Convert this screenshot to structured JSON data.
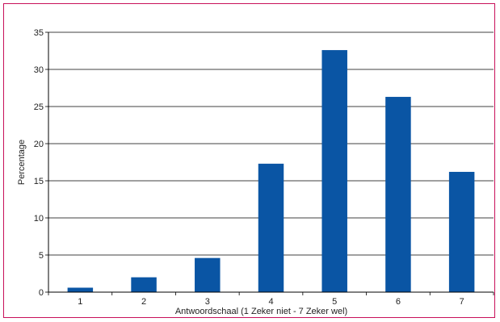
{
  "chart_data": {
    "type": "bar",
    "categories": [
      "1",
      "2",
      "3",
      "4",
      "5",
      "6",
      "7"
    ],
    "values": [
      0.6,
      2.0,
      4.6,
      17.3,
      32.6,
      26.3,
      16.2
    ],
    "xlabel": "Antwoordschaal (1 Zeker niet - 7 Zeker wel)",
    "ylabel": "Percentage",
    "ylim": [
      0,
      35
    ],
    "yticks": [
      "0",
      "5",
      "10",
      "15",
      "20",
      "25",
      "30",
      "35"
    ],
    "grid": true,
    "colors": {
      "bar": "#0a55a4",
      "frame": "#c8105a",
      "grid": "#000000"
    }
  }
}
